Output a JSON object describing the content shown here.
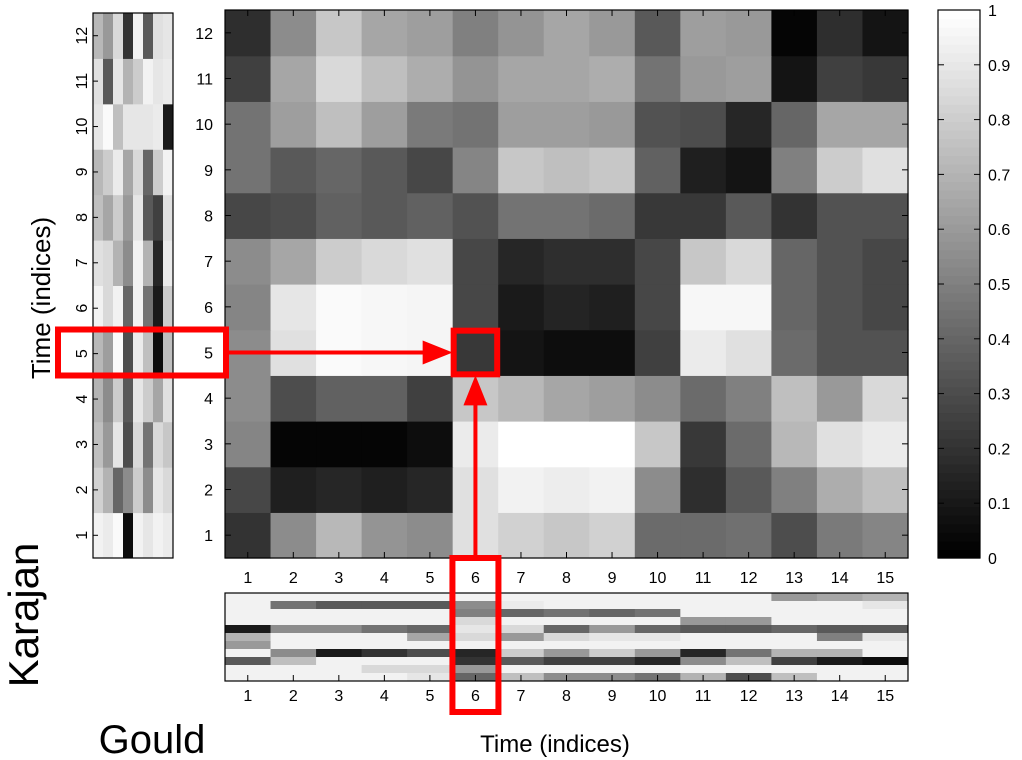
{
  "chart_data": {
    "type": "heatmap",
    "xlabel": "Time (indices)",
    "ylabel": "Time (indices)",
    "x_ticks": [
      "1",
      "2",
      "3",
      "4",
      "5",
      "6",
      "7",
      "8",
      "9",
      "10",
      "11",
      "12",
      "13",
      "14",
      "15"
    ],
    "y_ticks": [
      "1",
      "2",
      "3",
      "4",
      "5",
      "6",
      "7",
      "8",
      "9",
      "10",
      "11",
      "12"
    ],
    "colorbar": {
      "ticks": [
        "0",
        "0.1",
        "0.2",
        "0.3",
        "0.4",
        "0.5",
        "0.6",
        "0.7",
        "0.8",
        "0.9",
        "1"
      ],
      "range": [
        0,
        1
      ]
    },
    "labels": {
      "x_sequence": "Karajan",
      "y_sequence": "Gould"
    },
    "highlight": {
      "x": 6,
      "y": 5
    },
    "matrix_rows_bottom_to_top": [
      [
        0.2,
        0.55,
        0.72,
        0.58,
        0.55,
        0.88,
        0.82,
        0.78,
        0.82,
        0.42,
        0.42,
        0.44,
        0.3,
        0.48,
        0.52
      ],
      [
        0.28,
        0.12,
        0.15,
        0.12,
        0.15,
        0.88,
        0.95,
        0.93,
        0.95,
        0.55,
        0.18,
        0.35,
        0.5,
        0.68,
        0.75
      ],
      [
        0.52,
        0.02,
        0.02,
        0.02,
        0.05,
        0.92,
        1.0,
        1.0,
        1.0,
        0.78,
        0.22,
        0.42,
        0.72,
        0.88,
        0.92
      ],
      [
        0.55,
        0.3,
        0.38,
        0.38,
        0.25,
        0.78,
        0.72,
        0.65,
        0.62,
        0.55,
        0.42,
        0.5,
        0.75,
        0.6,
        0.85
      ],
      [
        0.55,
        0.88,
        0.98,
        0.97,
        0.96,
        0.22,
        0.08,
        0.05,
        0.05,
        0.25,
        0.92,
        0.88,
        0.42,
        0.32,
        0.32
      ],
      [
        0.52,
        0.9,
        0.98,
        0.97,
        0.96,
        0.28,
        0.1,
        0.14,
        0.12,
        0.28,
        0.97,
        0.97,
        0.4,
        0.32,
        0.28
      ],
      [
        0.55,
        0.65,
        0.8,
        0.85,
        0.88,
        0.28,
        0.15,
        0.18,
        0.18,
        0.28,
        0.78,
        0.85,
        0.4,
        0.32,
        0.28
      ],
      [
        0.28,
        0.3,
        0.38,
        0.35,
        0.38,
        0.32,
        0.45,
        0.45,
        0.42,
        0.22,
        0.22,
        0.35,
        0.2,
        0.32,
        0.32
      ],
      [
        0.45,
        0.35,
        0.4,
        0.35,
        0.28,
        0.52,
        0.78,
        0.75,
        0.78,
        0.38,
        0.12,
        0.08,
        0.5,
        0.8,
        0.88
      ],
      [
        0.45,
        0.62,
        0.75,
        0.62,
        0.48,
        0.45,
        0.62,
        0.62,
        0.6,
        0.32,
        0.3,
        0.15,
        0.4,
        0.65,
        0.65
      ],
      [
        0.25,
        0.65,
        0.85,
        0.75,
        0.68,
        0.58,
        0.65,
        0.65,
        0.68,
        0.45,
        0.6,
        0.62,
        0.08,
        0.25,
        0.22
      ],
      [
        0.18,
        0.55,
        0.78,
        0.65,
        0.62,
        0.5,
        0.58,
        0.65,
        0.6,
        0.35,
        0.62,
        0.6,
        0.02,
        0.18,
        0.08
      ]
    ],
    "gould_strip_cols": [
      [
        0.95,
        0.82,
        0.75,
        0.7,
        0.72,
        0.95,
        0.88,
        0.75,
        0.72,
        0.9,
        0.88,
        0.72
      ],
      [
        0.92,
        0.7,
        0.6,
        0.55,
        0.62,
        0.85,
        0.85,
        0.65,
        0.8,
        0.98,
        0.35,
        0.6
      ],
      [
        0.98,
        0.4,
        0.9,
        0.8,
        0.98,
        0.95,
        0.7,
        0.8,
        0.92,
        0.75,
        0.9,
        0.85
      ],
      [
        0.05,
        0.55,
        0.3,
        0.35,
        0.3,
        0.4,
        0.55,
        0.6,
        0.65,
        0.9,
        0.7,
        0.2
      ],
      [
        0.95,
        0.8,
        0.85,
        0.9,
        0.92,
        0.95,
        0.95,
        0.9,
        0.85,
        0.9,
        0.8,
        0.95
      ],
      [
        0.9,
        0.55,
        0.45,
        0.8,
        0.75,
        0.45,
        0.7,
        0.35,
        0.4,
        0.9,
        0.95,
        0.35
      ],
      [
        0.95,
        0.9,
        0.85,
        0.65,
        0.05,
        0.1,
        0.15,
        0.25,
        0.8,
        0.92,
        0.9,
        0.88
      ],
      [
        0.92,
        0.85,
        0.78,
        0.88,
        0.75,
        0.8,
        0.92,
        0.88,
        0.95,
        0.1,
        0.92,
        0.9
      ]
    ],
    "karajan_strip_rows": [
      [
        0.95,
        0.95,
        0.95,
        0.95,
        0.95,
        0.95,
        0.95,
        0.95,
        0.95,
        0.95,
        0.95,
        0.95,
        0.6,
        0.65,
        0.7
      ],
      [
        0.95,
        0.45,
        0.35,
        0.35,
        0.35,
        0.55,
        0.92,
        0.95,
        0.95,
        0.95,
        0.95,
        0.95,
        0.95,
        0.95,
        0.9
      ],
      [
        0.95,
        0.95,
        0.95,
        0.95,
        0.95,
        0.5,
        0.4,
        0.45,
        0.4,
        0.45,
        0.95,
        0.95,
        0.95,
        0.95,
        0.95
      ],
      [
        0.95,
        0.95,
        0.95,
        0.95,
        0.95,
        0.85,
        0.95,
        0.95,
        0.95,
        0.95,
        0.6,
        0.6,
        0.95,
        0.95,
        0.95
      ],
      [
        0.1,
        0.55,
        0.55,
        0.45,
        0.4,
        0.9,
        0.85,
        0.4,
        0.6,
        0.4,
        0.35,
        0.35,
        0.4,
        0.35,
        0.35
      ],
      [
        0.7,
        0.95,
        0.95,
        0.95,
        0.65,
        0.85,
        0.6,
        0.85,
        0.9,
        0.9,
        0.95,
        0.95,
        0.95,
        0.5,
        0.9
      ],
      [
        0.6,
        0.95,
        0.95,
        0.95,
        0.95,
        0.95,
        0.95,
        0.95,
        0.95,
        0.95,
        0.95,
        0.95,
        0.95,
        0.95,
        0.95
      ],
      [
        0.95,
        0.55,
        0.1,
        0.2,
        0.3,
        0.15,
        0.8,
        0.6,
        0.8,
        0.6,
        0.15,
        0.45,
        0.7,
        0.7,
        0.95
      ],
      [
        0.35,
        0.75,
        0.95,
        0.95,
        0.95,
        0.2,
        0.35,
        0.25,
        0.25,
        0.15,
        0.55,
        0.75,
        0.25,
        0.1,
        0.05
      ],
      [
        0.95,
        0.95,
        0.95,
        0.85,
        0.85,
        0.6,
        0.95,
        0.95,
        0.95,
        0.95,
        0.95,
        0.95,
        0.95,
        0.95,
        0.95
      ],
      [
        0.95,
        0.95,
        0.95,
        0.95,
        0.9,
        0.4,
        0.75,
        0.55,
        0.55,
        0.45,
        0.7,
        0.3,
        0.75,
        0.95,
        0.95
      ]
    ]
  },
  "colors": {
    "highlight": "#ff0000",
    "axis": "#000000"
  }
}
